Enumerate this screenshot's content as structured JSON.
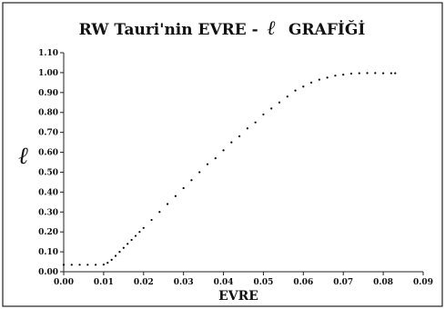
{
  "chart_data": {
    "type": "scatter",
    "title_prefix": "RW Tauri'nin EVRE -",
    "title_symbol": "ℓ",
    "title_suffix": "GRAFİĞİ",
    "xlabel": "EVRE",
    "ylabel": "ℓ",
    "xlim": [
      0.0,
      0.09
    ],
    "ylim": [
      0.0,
      1.1
    ],
    "xticks": [
      "0.00",
      "0.01",
      "0.02",
      "0.03",
      "0.04",
      "0.05",
      "0.06",
      "0.07",
      "0.08",
      "0.09"
    ],
    "yticks": [
      "0.00",
      "0.10",
      "0.20",
      "0.30",
      "0.40",
      "0.50",
      "0.60",
      "0.70",
      "0.80",
      "0.90",
      "1.00",
      "1.10"
    ],
    "grid": false,
    "series": [
      {
        "color": "#000000",
        "points": [
          [
            0.0,
            0.035
          ],
          [
            0.002,
            0.035
          ],
          [
            0.004,
            0.035
          ],
          [
            0.006,
            0.035
          ],
          [
            0.008,
            0.035
          ],
          [
            0.01,
            0.036
          ],
          [
            0.011,
            0.045
          ],
          [
            0.012,
            0.06
          ],
          [
            0.013,
            0.08
          ],
          [
            0.014,
            0.1
          ],
          [
            0.015,
            0.12
          ],
          [
            0.016,
            0.14
          ],
          [
            0.017,
            0.16
          ],
          [
            0.018,
            0.18
          ],
          [
            0.019,
            0.2
          ],
          [
            0.02,
            0.22
          ],
          [
            0.022,
            0.26
          ],
          [
            0.024,
            0.3
          ],
          [
            0.026,
            0.34
          ],
          [
            0.028,
            0.38
          ],
          [
            0.03,
            0.42
          ],
          [
            0.032,
            0.46
          ],
          [
            0.034,
            0.5
          ],
          [
            0.036,
            0.54
          ],
          [
            0.038,
            0.57
          ],
          [
            0.04,
            0.61
          ],
          [
            0.042,
            0.65
          ],
          [
            0.044,
            0.68
          ],
          [
            0.046,
            0.72
          ],
          [
            0.048,
            0.75
          ],
          [
            0.05,
            0.79
          ],
          [
            0.052,
            0.82
          ],
          [
            0.054,
            0.85
          ],
          [
            0.056,
            0.88
          ],
          [
            0.058,
            0.91
          ],
          [
            0.06,
            0.93
          ],
          [
            0.062,
            0.95
          ],
          [
            0.064,
            0.965
          ],
          [
            0.066,
            0.975
          ],
          [
            0.068,
            0.985
          ],
          [
            0.07,
            0.99
          ],
          [
            0.072,
            0.995
          ],
          [
            0.074,
            0.997
          ],
          [
            0.076,
            0.998
          ],
          [
            0.078,
            0.998
          ],
          [
            0.08,
            0.997
          ],
          [
            0.082,
            0.997
          ],
          [
            0.083,
            0.997
          ]
        ]
      }
    ]
  }
}
